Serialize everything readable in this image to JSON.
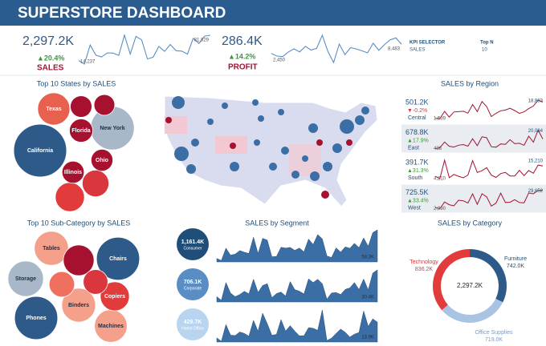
{
  "header": {
    "title": "SUPERSTORE DASHBOARD"
  },
  "kpis": [
    {
      "value": "2,297.2K",
      "change": "▲20.4%",
      "name": "SALES",
      "color": "#5b8dc5",
      "trend": {
        "values": [
          14237,
          4520,
          55691,
          28295,
          23648,
          34595,
          33946,
          27909,
          81777,
          31453,
          78629,
          69546,
          18174,
          22979,
          51715,
          38750,
          56988,
          40345,
          39262,
          31115,
          73410,
          59687,
          79412,
          81829
        ],
        "start_label": "14,237",
        "end_label": "81,829"
      }
    },
    {
      "value": "286.4K",
      "change": "▲14.2%",
      "name": "PROFIT",
      "color": "#5b8dc5",
      "trend": {
        "values": [
          2450,
          862,
          498,
          3489,
          5478,
          3523,
          7126,
          4720,
          5765,
          14240,
          3720,
          -3281,
          8580,
          1780,
          6260,
          5405,
          4220,
          2890,
          9070,
          4475,
          8270,
          11300,
          12540,
          8483
        ],
        "start_label": "2,450",
        "end_label": "8,483"
      }
    }
  ],
  "kpi_selector": {
    "label": "KPI SELECTOR",
    "value": "SALES",
    "top_n_label": "Top N",
    "top_n": "10"
  },
  "chart_data": [
    {
      "type": "bubble",
      "title": "Top 10 States by SALES",
      "categories": [
        "California",
        "New York",
        "Texas",
        null,
        null,
        "Florida",
        "Illinois",
        "Ohio",
        null,
        null
      ],
      "values": [
        457.7,
        310.9,
        170.2,
        138.6,
        116.5,
        89.5,
        80.2,
        78.3,
        76.3,
        70.6
      ],
      "colors": [
        "#2e5a8a",
        "#a9b8c9",
        "#e8614f",
        "#e23b3b",
        "#d9363e",
        "#a5112f",
        "#a5112f",
        "#a5112f",
        "#a5112f",
        "#a5112f"
      ]
    },
    {
      "type": "sparklines",
      "title": "SALES by Region",
      "color": "#a5112f",
      "items": [
        {
          "name": "Central",
          "total": "501.2K",
          "change": "▼-0.2%",
          "change_color": "#d9363e",
          "values": [
            1539,
            1233,
            8873,
            2811,
            8251,
            8646,
            9070,
            6980,
            16250,
            8740,
            19430,
            14000,
            3410,
            6850,
            9570,
            10340,
            12180,
            9860,
            6730,
            8480,
            11900,
            14590,
            20980,
            18883
          ],
          "start_label": "1,539",
          "end_label": "18,883"
        },
        {
          "name": "East",
          "total": "678.8K",
          "change": "▲17.9%",
          "change_color": "#3a9a3a",
          "values": [
            436,
            2070,
            13880,
            5210,
            3580,
            7370,
            8710,
            5380,
            20620,
            6420,
            24580,
            22540,
            4200,
            3200,
            9890,
            9210,
            18700,
            10500,
            11300,
            7180,
            25710,
            13490,
            38200,
            20084
          ],
          "start_label": "436",
          "end_label": "20,084"
        },
        {
          "name": "South",
          "total": "391.7K",
          "change": "▲31.3%",
          "change_color": "#3a9a3a",
          "values": [
            4210,
            1770,
            21280,
            2780,
            6140,
            4270,
            2660,
            5590,
            20820,
            8230,
            10170,
            13370,
            5450,
            3010,
            7080,
            8320,
            4610,
            4580,
            10450,
            5030,
            10340,
            7470,
            16110,
            15210
          ],
          "start_label": "4,210",
          "end_label": "15,210"
        },
        {
          "name": "West",
          "total": "725.5K",
          "change": "▲33.4%",
          "change_color": "#3a9a3a",
          "values": [
            2990,
            1470,
            11650,
            7470,
            5740,
            14390,
            13470,
            10010,
            24090,
            8070,
            24150,
            19600,
            5310,
            9890,
            25160,
            10900,
            11330,
            15250,
            10770,
            10420,
            25460,
            24190,
            29640,
            29652
          ],
          "start_label": "2,990",
          "end_label": "29,652"
        }
      ]
    },
    {
      "type": "bubble",
      "title": "Top 10 Sub-Category by SALES",
      "categories": [
        "Phones",
        "Chairs",
        "Storage",
        "Tables",
        "Binders",
        "Machines",
        null,
        "Copiers",
        null,
        null
      ],
      "values": [
        330.0,
        328.4,
        223.8,
        207.0,
        203.4,
        189.2,
        167.4,
        149.5,
        114.9,
        107.5
      ],
      "colors": [
        "#2e5a8a",
        "#2e5a8a",
        "#a9b8c9",
        "#f4a08a",
        "#f4a08a",
        "#f4a08a",
        "#a5112f",
        "#e23b3b",
        "#f07060",
        "#d9363e"
      ]
    },
    {
      "type": "area",
      "title": "SALES by Segment",
      "fill": "#3b6ea5",
      "series": [
        {
          "name": "Consumer",
          "total": "1,161.4K",
          "color": "#1f4e79",
          "values": [
            6.2,
            2.5,
            25.1,
            12.3,
            14.1,
            20.6,
            17.7,
            15.3,
            45.1,
            14.9,
            42.9,
            39.7,
            9.4,
            9.9,
            26.6,
            25.0,
            26.4,
            21.0,
            25.2,
            18.3,
            41.5,
            31.6,
            49.7,
            41.8,
            10.8,
            8.0,
            25.5,
            17.8,
            27.4,
            24.7,
            33.8,
            26.0,
            43.6,
            28.3,
            53.3,
            58.3
          ],
          "end_label": "58.3K"
        },
        {
          "name": "Corporate",
          "total": "706.1K",
          "color": "#5b8dc5",
          "values": [
            5.0,
            1.6,
            18.4,
            8.4,
            5.0,
            7.1,
            10.1,
            7.7,
            21.6,
            9.1,
            15.6,
            17.3,
            4.1,
            7.9,
            9.4,
            5.6,
            19.3,
            11.7,
            10.2,
            7.6,
            21.9,
            18.4,
            21.5,
            17.3,
            2.6,
            8.5,
            8.9,
            7.1,
            11.9,
            13.3,
            18.4,
            11.8,
            21.7,
            11.3,
            27.4,
            30.4
          ],
          "end_label": "30.4K"
        },
        {
          "name": "Home Office",
          "total": "429.7K",
          "color": "#b9d4ee",
          "values": [
            2.9,
            0.5,
            12.2,
            4.8,
            4.5,
            7.0,
            6.0,
            4.1,
            15.1,
            7.5,
            20.1,
            12.7,
            4.7,
            5.3,
            15.6,
            7.6,
            11.4,
            7.6,
            4.3,
            4.4,
            10.0,
            9.6,
            8.2,
            22.4,
            1.0,
            2.7,
            6.0,
            9.0,
            6.8,
            3.4,
            5.5,
            6.6,
            21.7,
            10.9,
            16.2,
            13.9
          ],
          "end_label": "13.9K"
        }
      ]
    },
    {
      "type": "donut",
      "title": "SALES by Category",
      "center_label": "2,297.2K",
      "categories": [
        "Furniture",
        "Office Supplies",
        "Technology"
      ],
      "values": [
        742.0,
        719.0,
        836.2
      ],
      "value_labels": [
        "742.0K",
        "719.0K",
        "836.2K"
      ],
      "colors": [
        "#2e5a8a",
        "#a9c4e3",
        "#e23b3b"
      ],
      "label_colors": [
        "#1f4e79",
        "#7a9cc4",
        "#d9363e"
      ]
    }
  ]
}
